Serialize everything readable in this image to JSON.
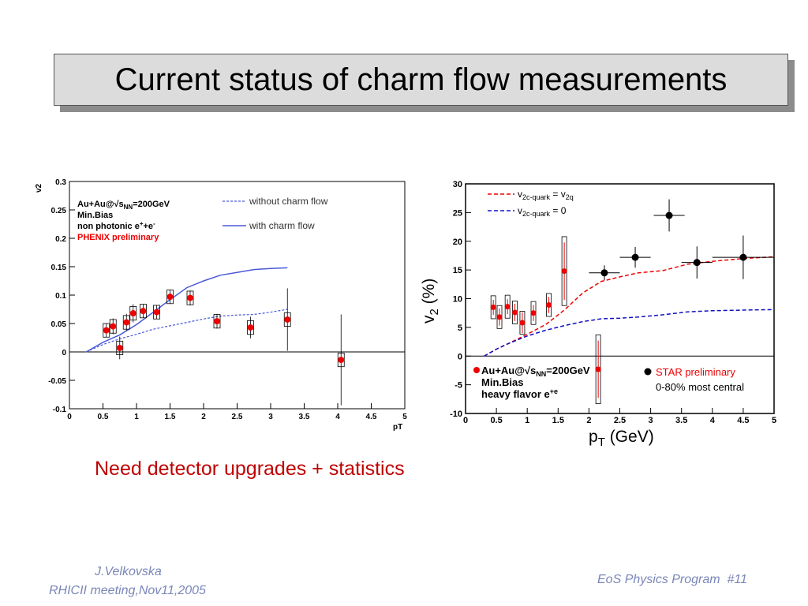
{
  "slide": {
    "title": "Current status of charm flow measurements",
    "tagline": "Need detector upgrades + statistics",
    "author": "J.Velkovska",
    "meeting": "RHICII meeting,Nov11,2005",
    "footer": "EoS Physics Program  #11"
  },
  "colors": {
    "red": "#ee0000",
    "blue_line": "#4a5ad8",
    "blue_dash": "#1010c0",
    "title_bg": "#dcdcdc",
    "tagline": "#c00000",
    "footer": "#7a86b8"
  },
  "chart_data": [
    {
      "type": "scatter",
      "xlabel": "pT",
      "ylabel": "v2",
      "xlim": [
        0,
        5
      ],
      "ylim": [
        -0.1,
        0.3
      ],
      "xticks": [
        "0",
        "0.5",
        "1",
        "1.5",
        "2",
        "2.5",
        "3",
        "3.5",
        "4",
        "4.5",
        "5"
      ],
      "yticks": [
        "-0.1",
        "-0.05",
        "0",
        "0.05",
        "0.1",
        "0.15",
        "0.2",
        "0.25",
        "0.3"
      ],
      "annotations": [
        "Au+Au@√s",
        "NN",
        "=200GeV",
        "Min.Bias",
        "non photonic e",
        "+e",
        "PHENIX preliminary"
      ],
      "legend": [
        "without charm flow",
        "with charm flow"
      ],
      "series": [
        {
          "x": [
            0.55,
            0.65,
            0.75,
            0.85,
            0.95,
            1.1,
            1.3,
            1.5,
            1.8,
            2.2,
            2.7,
            3.25,
            4.05
          ],
          "y": [
            0.038,
            0.045,
            0.007,
            0.052,
            0.068,
            0.072,
            0.07,
            0.097,
            0.095,
            0.054,
            0.043,
            0.057,
            -0.014
          ],
          "err": [
            0.012,
            0.014,
            0.02,
            0.015,
            0.016,
            0.012,
            0.012,
            0.012,
            0.013,
            0.013,
            0.019,
            0.055,
            0.08
          ]
        },
        {
          "x": [
            0.25,
            0.5,
            0.75,
            1,
            1.25,
            1.5,
            1.75,
            2,
            2.25,
            2.5,
            2.75,
            3,
            3.25
          ],
          "y": [
            0,
            0.013,
            0.023,
            0.031,
            0.04,
            0.046,
            0.052,
            0.058,
            0.063,
            0.065,
            0.066,
            0.07,
            0.075
          ]
        },
        {
          "x": [
            0.25,
            0.5,
            0.75,
            1,
            1.25,
            1.5,
            1.75,
            2,
            2.25,
            2.5,
            2.75,
            3,
            3.25
          ],
          "y": [
            0,
            0.017,
            0.03,
            0.048,
            0.07,
            0.092,
            0.113,
            0.125,
            0.135,
            0.14,
            0.145,
            0.147,
            0.148
          ]
        }
      ]
    },
    {
      "type": "scatter",
      "xlabel": "p",
      "xlabel_sub": "T",
      "xlabel_unit": " (GeV)",
      "ylabel": "v",
      "ylabel_sub": "2",
      "ylabel_unit": " (%)",
      "xlim": [
        0,
        5
      ],
      "ylim": [
        -10,
        30
      ],
      "xticks": [
        "0",
        "0.5",
        "1",
        "1.5",
        "2",
        "2.5",
        "3",
        "3.5",
        "4",
        "4.5",
        "5"
      ],
      "yticks": [
        "-10",
        "-5",
        "0",
        "5",
        "10",
        "15",
        "20",
        "25",
        "30"
      ],
      "legend": [
        {
          "main": "v",
          "sub": "2c-quark",
          "rest": " = v",
          "sub2": "2q"
        },
        {
          "main": "v",
          "sub": "2c-quark",
          "rest": " = 0"
        }
      ],
      "annotations": [
        "Au+Au@√s",
        "NN",
        "=200GeV",
        "Min.Bias",
        "heavy flavor e",
        "+e",
        "STAR preliminary",
        "0-80% most central"
      ],
      "series": [
        {
          "name": "STAR preliminary",
          "x": [
            2.25,
            2.75,
            3.3,
            3.75,
            4.5
          ],
          "y": [
            14.5,
            17.2,
            24.5,
            16.3,
            17.2
          ],
          "xerr": [
            0.25,
            0.25,
            0.25,
            0.25,
            0.5
          ],
          "yerr": [
            1.3,
            1.8,
            2.8,
            2.8,
            3.8
          ]
        },
        {
          "x": [
            0.45,
            0.55,
            0.68,
            0.8,
            0.92,
            1.1,
            1.35,
            1.6,
            2.15
          ],
          "y": [
            8.5,
            6.8,
            8.6,
            7.6,
            5.8,
            7.5,
            8.9,
            14.8,
            -2.3
          ],
          "err": [
            1.3,
            1.5,
            1.3,
            1.5,
            1.8,
            1.4,
            1.4,
            5,
            5
          ]
        },
        {
          "x": [
            0.3,
            0.5,
            0.7,
            1,
            1.3,
            1.6,
            1.9,
            2.2,
            2.5,
            2.8,
            3.2,
            3.6,
            4,
            4.5,
            5
          ],
          "y": [
            0,
            1.2,
            2.2,
            3.8,
            5.5,
            8,
            11,
            13,
            13.8,
            14.5,
            14.9,
            16,
            16.5,
            17,
            17.3
          ]
        },
        {
          "x": [
            0.3,
            0.5,
            0.7,
            1,
            1.3,
            1.6,
            1.9,
            2.2,
            2.5,
            2.8,
            3.2,
            3.6,
            4,
            4.5,
            5
          ],
          "y": [
            0,
            1.2,
            2.2,
            3.5,
            4.5,
            5.3,
            6,
            6.5,
            6.6,
            6.8,
            7.2,
            7.7,
            7.9,
            8,
            8.1
          ]
        }
      ]
    }
  ]
}
